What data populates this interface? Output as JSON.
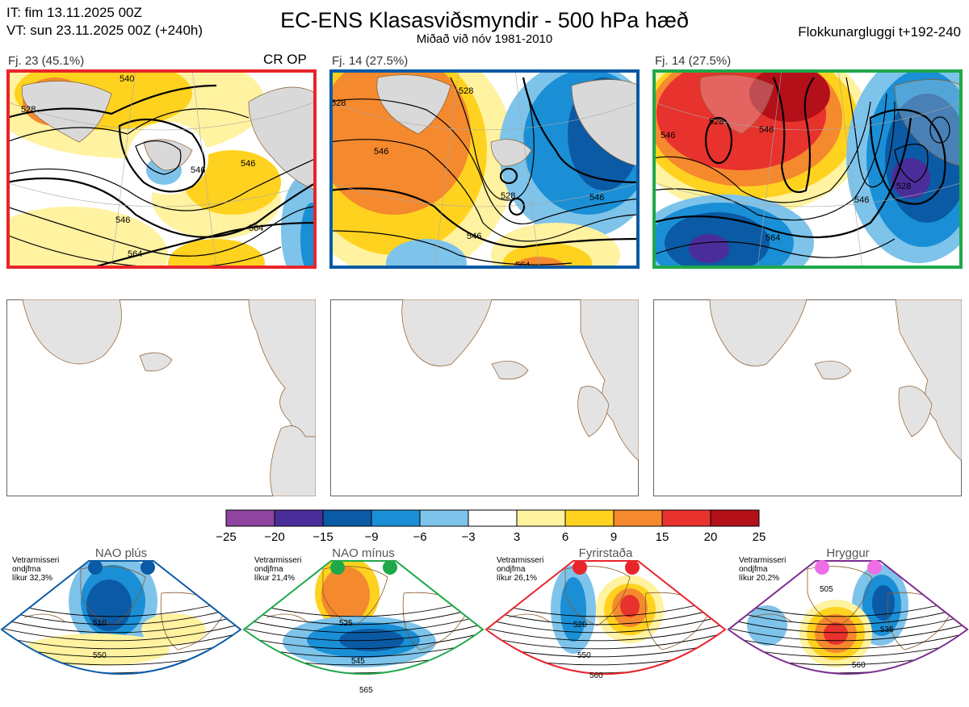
{
  "header": {
    "it": "IT: fim 13.11.2025 00Z",
    "vt": "VT: sun 23.11.2025 00Z  (+240h)",
    "title": "EC-ENS Klasasviðsmyndir - 500 hPa hæð",
    "subtitle": "Miðað við nóv 1981-2010",
    "window": "Flokkunargluggi t+192-240"
  },
  "clusters": [
    {
      "label": "Fj. 23 (45.1%)",
      "border": "#e8252a",
      "extra": "CR OP",
      "contours": [
        "528",
        "546",
        "546",
        "546",
        "564",
        "564",
        "540"
      ]
    },
    {
      "label": "Fj. 14 (27.5%)",
      "border": "#0b5aa5",
      "extra": "",
      "contours": [
        "528",
        "528",
        "546",
        "546",
        "546",
        "564",
        "528"
      ]
    },
    {
      "label": "Fj. 14 (27.5%)",
      "border": "#1fa84a",
      "extra": "",
      "contours": [
        "528",
        "546",
        "546",
        "564",
        "546",
        "528"
      ]
    }
  ],
  "colorbar": {
    "ticks": [
      "−25",
      "−20",
      "−15",
      "−9",
      "−6",
      "−3",
      "3",
      "6",
      "9",
      "15",
      "20",
      "25"
    ],
    "colors": [
      "#8e44a0",
      "#4b2d9a",
      "#0b5aa5",
      "#1a8fd6",
      "#7ec3ea",
      "#ffffff",
      "#fff2a0",
      "#ffd21f",
      "#f5892e",
      "#e8322d",
      "#b3101a"
    ]
  },
  "regimes": [
    {
      "name": "NAO plús",
      "color": "#0b5aa5",
      "dot": "#0b5aa5",
      "info": [
        "Vetrarmisseri",
        "ondjfma",
        "líkur 32,3%"
      ],
      "contours": [
        "510",
        "550"
      ]
    },
    {
      "name": "NAO mínus",
      "color": "#1fa84a",
      "dot": "#1fa84a",
      "info": [
        "Vetrarmisseri",
        "ondjfma",
        "líkur 21,4%"
      ],
      "contours": [
        "525",
        "545",
        "565"
      ]
    },
    {
      "name": "Fyrirstaða",
      "color": "#e8252a",
      "dot": "#e8252a",
      "info": [
        "Vetrarmisseri",
        "ondjfma",
        "líkur 26,1%"
      ],
      "contours": [
        "520",
        "550",
        "560"
      ]
    },
    {
      "name": "Hryggur",
      "color": "#7b2c8f",
      "dot": "#ee6ee6",
      "info": [
        "Vetrarmisseri",
        "ondjfma",
        "líkur 20,2%"
      ],
      "contours": [
        "505",
        "535",
        "560"
      ]
    }
  ]
}
